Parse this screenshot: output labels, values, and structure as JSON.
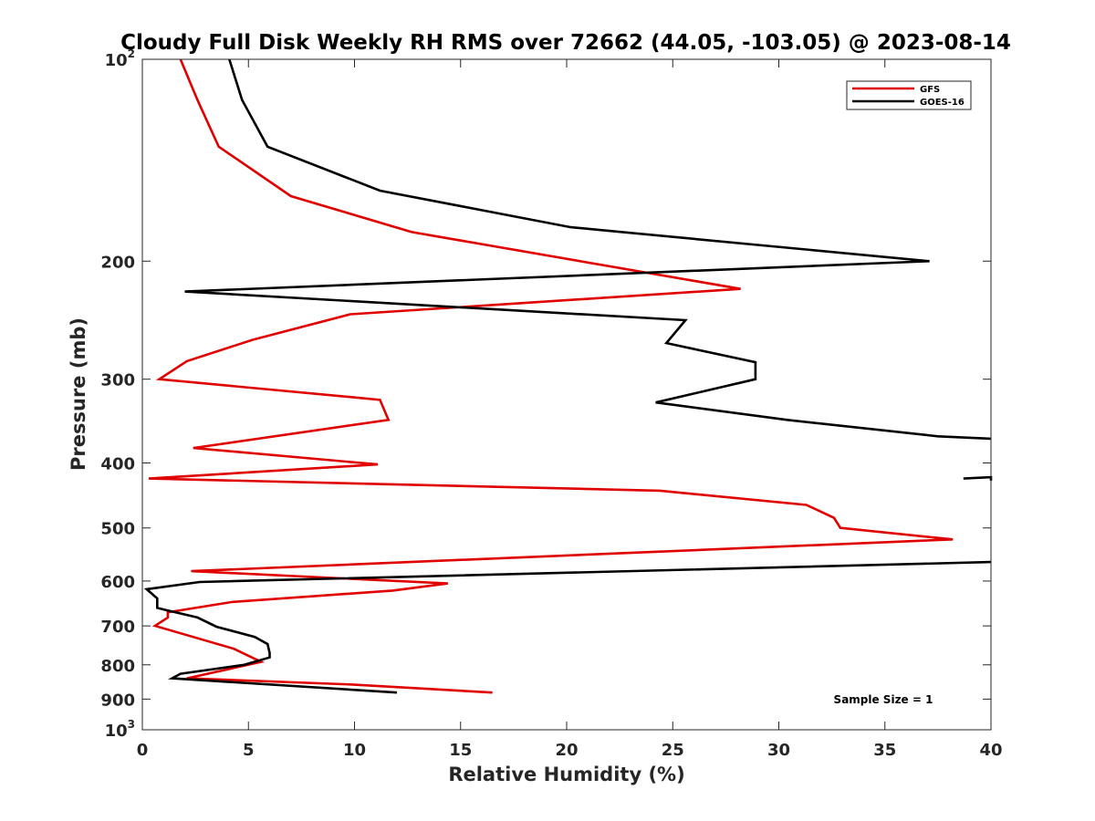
{
  "chart_data": {
    "type": "line",
    "title": "Cloudy Full Disk Weekly RH RMS over 72662 (44.05, -103.05) @ 2023-08-14",
    "xlabel": "Relative Humidity (%)",
    "ylabel": "Pressure (mb)",
    "xlim": [
      0,
      40
    ],
    "ylim": [
      100,
      1000
    ],
    "y_scale": "log",
    "y_reversed": true,
    "grid": false,
    "legend_position": "top-right",
    "x_ticks": [
      {
        "value": 0,
        "label": "0"
      },
      {
        "value": 5,
        "label": "5"
      },
      {
        "value": 10,
        "label": "10"
      },
      {
        "value": 15,
        "label": "15"
      },
      {
        "value": 20,
        "label": "20"
      },
      {
        "value": 25,
        "label": "25"
      },
      {
        "value": 30,
        "label": "30"
      },
      {
        "value": 35,
        "label": "35"
      },
      {
        "value": 40,
        "label": "40"
      }
    ],
    "y_ticks": [
      {
        "value": 100,
        "base": "10",
        "exp": "2"
      },
      {
        "value": 200,
        "base": "200",
        "exp": ""
      },
      {
        "value": 300,
        "base": "300",
        "exp": ""
      },
      {
        "value": 400,
        "base": "400",
        "exp": ""
      },
      {
        "value": 500,
        "base": "500",
        "exp": ""
      },
      {
        "value": 600,
        "base": "600",
        "exp": ""
      },
      {
        "value": 700,
        "base": "700",
        "exp": ""
      },
      {
        "value": 800,
        "base": "800",
        "exp": ""
      },
      {
        "value": 900,
        "base": "900",
        "exp": ""
      },
      {
        "value": 1000,
        "base": "10",
        "exp": "3"
      }
    ],
    "annotation": "Sample Size = 1",
    "series": [
      {
        "name": "GFS",
        "color": "#e00000",
        "points": [
          [
            1.8,
            100
          ],
          [
            2.6,
            115
          ],
          [
            3.6,
            135
          ],
          [
            7.0,
            160
          ],
          [
            12.7,
            181
          ],
          [
            28.2,
            220
          ],
          [
            9.8,
            240
          ],
          [
            5.2,
            262
          ],
          [
            2.1,
            282
          ],
          [
            0.8,
            300
          ],
          [
            11.2,
            322
          ],
          [
            11.6,
            345
          ],
          [
            2.4,
            380
          ],
          [
            11.1,
            402
          ],
          [
            0.3,
            422
          ],
          [
            24.4,
            440
          ],
          [
            31.3,
            462
          ],
          [
            32.6,
            483
          ],
          [
            32.9,
            500
          ],
          [
            38.2,
            520
          ],
          [
            2.3,
            580
          ],
          [
            14.4,
            605
          ],
          [
            11.8,
            620
          ],
          [
            4.2,
            645
          ],
          [
            1.2,
            668
          ],
          [
            1.2,
            680
          ],
          [
            0.6,
            700
          ],
          [
            4.3,
            757
          ],
          [
            5.6,
            792
          ],
          [
            2.1,
            838
          ],
          [
            9.9,
            856
          ],
          [
            16.5,
            880
          ]
        ]
      },
      {
        "name": "GOES-16",
        "color": "#000000",
        "points": [
          [
            4.1,
            100
          ],
          [
            4.7,
            115
          ],
          [
            5.9,
            135
          ],
          [
            11.2,
            157
          ],
          [
            20.2,
            178
          ],
          [
            37.1,
            200
          ],
          [
            2.0,
            222
          ],
          [
            25.6,
            245
          ],
          [
            24.7,
            265
          ],
          [
            28.9,
            283
          ],
          [
            28.9,
            300
          ],
          [
            24.2,
            325
          ],
          [
            30.4,
            345
          ],
          [
            37.5,
            365
          ],
          [
            40.0,
            368
          ],
          [
            null,
            null
          ],
          [
            38.7,
            422
          ],
          [
            40.0,
            420
          ],
          [
            40.0,
            425
          ],
          [
            null,
            null
          ],
          [
            40.0,
            562
          ],
          [
            2.7,
            602
          ],
          [
            0.2,
            617
          ],
          [
            0.7,
            637
          ],
          [
            0.7,
            658
          ],
          [
            1.2,
            664
          ],
          [
            2.6,
            680
          ],
          [
            3.5,
            702
          ],
          [
            5.3,
            727
          ],
          [
            5.9,
            745
          ],
          [
            6.0,
            768
          ],
          [
            6.0,
            780
          ],
          [
            4.8,
            800
          ],
          [
            1.8,
            825
          ],
          [
            1.4,
            838
          ],
          [
            12.0,
            880
          ]
        ]
      }
    ]
  }
}
